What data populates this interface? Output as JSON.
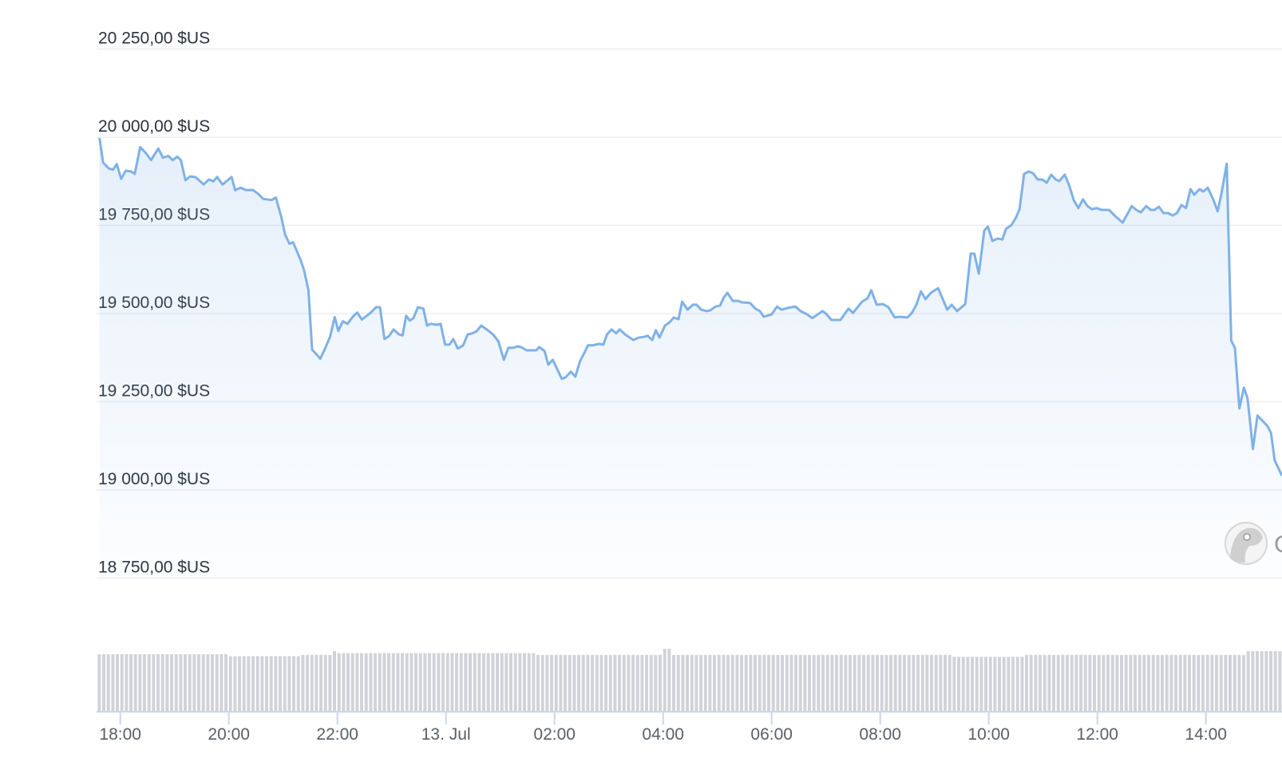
{
  "chart_data": {
    "type": "area",
    "title": "",
    "xlabel": "",
    "ylabel": "",
    "currency_suffix": "$US",
    "ylim": [
      18750,
      20250
    ],
    "grid": true,
    "line_color": "#7fb1e7",
    "fill_color": "#7fb1e7",
    "volume_color": "#d1d3d8",
    "axis_color": "#ccd6eb",
    "y_ticks": [
      {
        "value": 20250,
        "label": "20 250,00 $US"
      },
      {
        "value": 20000,
        "label": "20 000,00 $US"
      },
      {
        "value": 19750,
        "label": "19 750,00 $US"
      },
      {
        "value": 19500,
        "label": "19 500,00 $US"
      },
      {
        "value": 19250,
        "label": "19 250,00 $US"
      },
      {
        "value": 19000,
        "label": "19 000,00 $US"
      },
      {
        "value": 18750,
        "label": "18 750,00 $US"
      }
    ],
    "x_ticks": [
      {
        "time": "12 18:00",
        "label": "18:00"
      },
      {
        "time": "12 20:00",
        "label": "20:00"
      },
      {
        "time": "12 22:00",
        "label": "22:00"
      },
      {
        "time": "13 00:00",
        "label": "13. Jul"
      },
      {
        "time": "13 02:00",
        "label": "02:00"
      },
      {
        "time": "13 04:00",
        "label": "04:00"
      },
      {
        "time": "13 06:00",
        "label": "06:00"
      },
      {
        "time": "13 08:00",
        "label": "08:00"
      },
      {
        "time": "13 10:00",
        "label": "10:00"
      },
      {
        "time": "13 12:00",
        "label": "12:00"
      },
      {
        "time": "13 14:00",
        "label": "14:00"
      }
    ],
    "series": [
      {
        "points": [
          [
            "12 17:37",
            19998
          ],
          [
            "12 17:41",
            19928
          ],
          [
            "12 17:47",
            19912
          ],
          [
            "12 17:52",
            19908
          ],
          [
            "12 17:56",
            19924
          ],
          [
            "12 18:01",
            19882
          ],
          [
            "12 18:06",
            19905
          ],
          [
            "12 18:12",
            19903
          ],
          [
            "12 18:16",
            19896
          ],
          [
            "12 18:22",
            19972
          ],
          [
            "12 18:28",
            19956
          ],
          [
            "12 18:34",
            19935
          ],
          [
            "12 18:42",
            19968
          ],
          [
            "12 18:47",
            19942
          ],
          [
            "12 18:53",
            19947
          ],
          [
            "12 18:58",
            19935
          ],
          [
            "12 19:03",
            19945
          ],
          [
            "12 19:07",
            19935
          ],
          [
            "12 19:12",
            19878
          ],
          [
            "12 19:17",
            19889
          ],
          [
            "12 19:23",
            19887
          ],
          [
            "12 19:32",
            19866
          ],
          [
            "12 19:38",
            19880
          ],
          [
            "12 19:43",
            19875
          ],
          [
            "12 19:47",
            19887
          ],
          [
            "12 19:53",
            19866
          ],
          [
            "12 20:03",
            19887
          ],
          [
            "12 20:07",
            19850
          ],
          [
            "12 20:13",
            19857
          ],
          [
            "12 20:19",
            19850
          ],
          [
            "12 20:27",
            19850
          ],
          [
            "12 20:33",
            19838
          ],
          [
            "12 20:38",
            19825
          ],
          [
            "12 20:47",
            19822
          ],
          [
            "12 20:52",
            19829
          ],
          [
            "12 20:58",
            19774
          ],
          [
            "12 21:02",
            19725
          ],
          [
            "12 21:07",
            19698
          ],
          [
            "12 21:11",
            19702
          ],
          [
            "12 21:19",
            19654
          ],
          [
            "12 21:23",
            19624
          ],
          [
            "12 21:28",
            19566
          ],
          [
            "12 21:32",
            19398
          ],
          [
            "12 21:37",
            19384
          ],
          [
            "12 21:41",
            19372
          ],
          [
            "12 21:47",
            19405
          ],
          [
            "12 21:52",
            19435
          ],
          [
            "12 21:57",
            19490
          ],
          [
            "12 22:01",
            19451
          ],
          [
            "12 22:06",
            19478
          ],
          [
            "12 22:11",
            19471
          ],
          [
            "12 22:18",
            19494
          ],
          [
            "12 22:22",
            19503
          ],
          [
            "12 22:27",
            19483
          ],
          [
            "12 22:36",
            19501
          ],
          [
            "12 22:43",
            19518
          ],
          [
            "12 22:47",
            19518
          ],
          [
            "12 22:52",
            19428
          ],
          [
            "12 22:57",
            19436
          ],
          [
            "12 23:02",
            19455
          ],
          [
            "12 23:08",
            19441
          ],
          [
            "12 23:12",
            19438
          ],
          [
            "12 23:16",
            19494
          ],
          [
            "12 23:20",
            19480
          ],
          [
            "12 23:24",
            19487
          ],
          [
            "12 23:29",
            19518
          ],
          [
            "12 23:35",
            19514
          ],
          [
            "12 23:39",
            19466
          ],
          [
            "12 23:43",
            19471
          ],
          [
            "12 23:50",
            19468
          ],
          [
            "12 23:54",
            19471
          ],
          [
            "12 23:59",
            19412
          ],
          [
            "13 00:04",
            19412
          ],
          [
            "13 00:08",
            19428
          ],
          [
            "13 00:13",
            19401
          ],
          [
            "13 00:19",
            19410
          ],
          [
            "13 00:24",
            19441
          ],
          [
            "13 00:29",
            19444
          ],
          [
            "13 00:34",
            19450
          ],
          [
            "13 00:39",
            19466
          ],
          [
            "13 00:45",
            19455
          ],
          [
            "13 00:52",
            19441
          ],
          [
            "13 00:58",
            19421
          ],
          [
            "13 01:04",
            19369
          ],
          [
            "13 01:09",
            19403
          ],
          [
            "13 01:14",
            19403
          ],
          [
            "13 01:19",
            19407
          ],
          [
            "13 01:23",
            19405
          ],
          [
            "13 01:29",
            19396
          ],
          [
            "13 01:35",
            19396
          ],
          [
            "13 01:40",
            19396
          ],
          [
            "13 01:43",
            19405
          ],
          [
            "13 01:49",
            19394
          ],
          [
            "13 01:53",
            19355
          ],
          [
            "13 01:58",
            19369
          ],
          [
            "13 02:08",
            19315
          ],
          [
            "13 02:12",
            19319
          ],
          [
            "13 02:18",
            19335
          ],
          [
            "13 02:23",
            19321
          ],
          [
            "13 02:28",
            19364
          ],
          [
            "13 02:33",
            19389
          ],
          [
            "13 02:37",
            19410
          ],
          [
            "13 02:42",
            19410
          ],
          [
            "13 02:49",
            19414
          ],
          [
            "13 02:54",
            19412
          ],
          [
            "13 02:58",
            19441
          ],
          [
            "13 03:03",
            19455
          ],
          [
            "13 03:08",
            19444
          ],
          [
            "13 03:12",
            19455
          ],
          [
            "13 03:18",
            19441
          ],
          [
            "13 03:22",
            19434
          ],
          [
            "13 03:27",
            19425
          ],
          [
            "13 03:33",
            19432
          ],
          [
            "13 03:39",
            19434
          ],
          [
            "13 03:43",
            19437
          ],
          [
            "13 03:48",
            19425
          ],
          [
            "13 03:52",
            19453
          ],
          [
            "13 03:56",
            19432
          ],
          [
            "13 04:02",
            19466
          ],
          [
            "13 04:07",
            19475
          ],
          [
            "13 04:12",
            19489
          ],
          [
            "13 04:17",
            19484
          ],
          [
            "13 04:21",
            19534
          ],
          [
            "13 04:27",
            19511
          ],
          [
            "13 04:33",
            19525
          ],
          [
            "13 04:37",
            19525
          ],
          [
            "13 04:42",
            19511
          ],
          [
            "13 04:48",
            19507
          ],
          [
            "13 04:52",
            19509
          ],
          [
            "13 04:58",
            19520
          ],
          [
            "13 05:03",
            19523
          ],
          [
            "13 05:07",
            19545
          ],
          [
            "13 05:11",
            19559
          ],
          [
            "13 05:17",
            19536
          ],
          [
            "13 05:23",
            19536
          ],
          [
            "13 05:27",
            19532
          ],
          [
            "13 05:36",
            19530
          ],
          [
            "13 05:42",
            19514
          ],
          [
            "13 05:47",
            19507
          ],
          [
            "13 05:51",
            19491
          ],
          [
            "13 06:00",
            19498
          ],
          [
            "13 06:06",
            19520
          ],
          [
            "13 06:11",
            19511
          ],
          [
            "13 06:18",
            19516
          ],
          [
            "13 06:26",
            19520
          ],
          [
            "13 06:32",
            19507
          ],
          [
            "13 06:39",
            19498
          ],
          [
            "13 06:45",
            19487
          ],
          [
            "13 06:56",
            19507
          ],
          [
            "13 07:00",
            19500
          ],
          [
            "13 07:06",
            19482
          ],
          [
            "13 07:16",
            19482
          ],
          [
            "13 07:25",
            19514
          ],
          [
            "13 07:30",
            19502
          ],
          [
            "13 07:40",
            19534
          ],
          [
            "13 07:46",
            19543
          ],
          [
            "13 07:50",
            19566
          ],
          [
            "13 07:56",
            19525
          ],
          [
            "13 08:03",
            19527
          ],
          [
            "13 08:09",
            19518
          ],
          [
            "13 08:16",
            19489
          ],
          [
            "13 08:21",
            19491
          ],
          [
            "13 08:30",
            19489
          ],
          [
            "13 08:35",
            19502
          ],
          [
            "13 08:40",
            19525
          ],
          [
            "13 08:45",
            19563
          ],
          [
            "13 08:50",
            19541
          ],
          [
            "13 08:56",
            19559
          ],
          [
            "13 09:04",
            19572
          ],
          [
            "13 09:10",
            19536
          ],
          [
            "13 09:14",
            19511
          ],
          [
            "13 09:19",
            19525
          ],
          [
            "13 09:25",
            19507
          ],
          [
            "13 09:34",
            19527
          ],
          [
            "13 09:40",
            19670
          ],
          [
            "13 09:44",
            19670
          ],
          [
            "13 09:49",
            19613
          ],
          [
            "13 09:55",
            19735
          ],
          [
            "13 09:59",
            19747
          ],
          [
            "13 10:04",
            19706
          ],
          [
            "13 10:10",
            19713
          ],
          [
            "13 10:15",
            19710
          ],
          [
            "13 10:19",
            19740
          ],
          [
            "13 10:25",
            19751
          ],
          [
            "13 10:30",
            19772
          ],
          [
            "13 10:34",
            19796
          ],
          [
            "13 10:39",
            19896
          ],
          [
            "13 10:44",
            19903
          ],
          [
            "13 10:49",
            19898
          ],
          [
            "13 10:54",
            19880
          ],
          [
            "13 10:59",
            19880
          ],
          [
            "13 11:04",
            19871
          ],
          [
            "13 11:09",
            19894
          ],
          [
            "13 11:14",
            19880
          ],
          [
            "13 11:18",
            19876
          ],
          [
            "13 11:24",
            19894
          ],
          [
            "13 11:29",
            19862
          ],
          [
            "13 11:34",
            19821
          ],
          [
            "13 11:39",
            19799
          ],
          [
            "13 11:44",
            19824
          ],
          [
            "13 11:49",
            19805
          ],
          [
            "13 11:54",
            19796
          ],
          [
            "13 11:59",
            19799
          ],
          [
            "13 12:05",
            19794
          ],
          [
            "13 12:13",
            19794
          ],
          [
            "13 12:19",
            19778
          ],
          [
            "13 12:28",
            19758
          ],
          [
            "13 12:38",
            19805
          ],
          [
            "13 12:43",
            19794
          ],
          [
            "13 12:48",
            19787
          ],
          [
            "13 12:54",
            19805
          ],
          [
            "13 12:59",
            19794
          ],
          [
            "13 13:03",
            19794
          ],
          [
            "13 13:08",
            19803
          ],
          [
            "13 13:13",
            19785
          ],
          [
            "13 13:18",
            19785
          ],
          [
            "13 13:23",
            19778
          ],
          [
            "13 13:28",
            19785
          ],
          [
            "13 13:33",
            19808
          ],
          [
            "13 13:38",
            19799
          ],
          [
            "13 13:43",
            19853
          ],
          [
            "13 13:47",
            19837
          ],
          [
            "13 13:53",
            19853
          ],
          [
            "13 13:57",
            19846
          ],
          [
            "13 14:02",
            19857
          ],
          [
            "13 14:08",
            19824
          ],
          [
            "13 14:13",
            19790
          ],
          [
            "13 14:17",
            19839
          ],
          [
            "13 14:23",
            19925
          ],
          [
            "13 14:28",
            19423
          ],
          [
            "13 14:32",
            19403
          ],
          [
            "13 14:37",
            19231
          ],
          [
            "13 14:42",
            19290
          ],
          [
            "13 14:46",
            19260
          ],
          [
            "13 14:52",
            19116
          ],
          [
            "13 14:57",
            19211
          ],
          [
            "13 15:02",
            19197
          ],
          [
            "13 15:08",
            19181
          ],
          [
            "13 15:12",
            19161
          ],
          [
            "13 15:16",
            19084
          ],
          [
            "13 15:21",
            19057
          ],
          [
            "13 15:24",
            19040
          ]
        ]
      }
    ],
    "volume_relative": [
      {
        "from": "12 17:35",
        "to": "12 20:00",
        "level": 91
      },
      {
        "from": "12 20:00",
        "to": "12 21:20",
        "level": 88
      },
      {
        "from": "12 21:20",
        "to": "12 21:55",
        "level": 90
      },
      {
        "from": "12 21:55",
        "to": "12 22:00",
        "level": 96
      },
      {
        "from": "12 22:00",
        "to": "13 01:40",
        "level": 93
      },
      {
        "from": "13 01:40",
        "to": "13 04:00",
        "level": 90
      },
      {
        "from": "13 04:00",
        "to": "13 04:10",
        "level": 100
      },
      {
        "from": "13 04:10",
        "to": "13 09:20",
        "level": 90
      },
      {
        "from": "13 09:20",
        "to": "13 10:40",
        "level": 87
      },
      {
        "from": "13 10:40",
        "to": "13 14:45",
        "level": 90
      },
      {
        "from": "13 14:45",
        "to": "13 15:25",
        "level": 96
      }
    ]
  },
  "watermark": {
    "logo": "gecko-logo",
    "text": "CoinGecko",
    "visible_text": "C"
  }
}
